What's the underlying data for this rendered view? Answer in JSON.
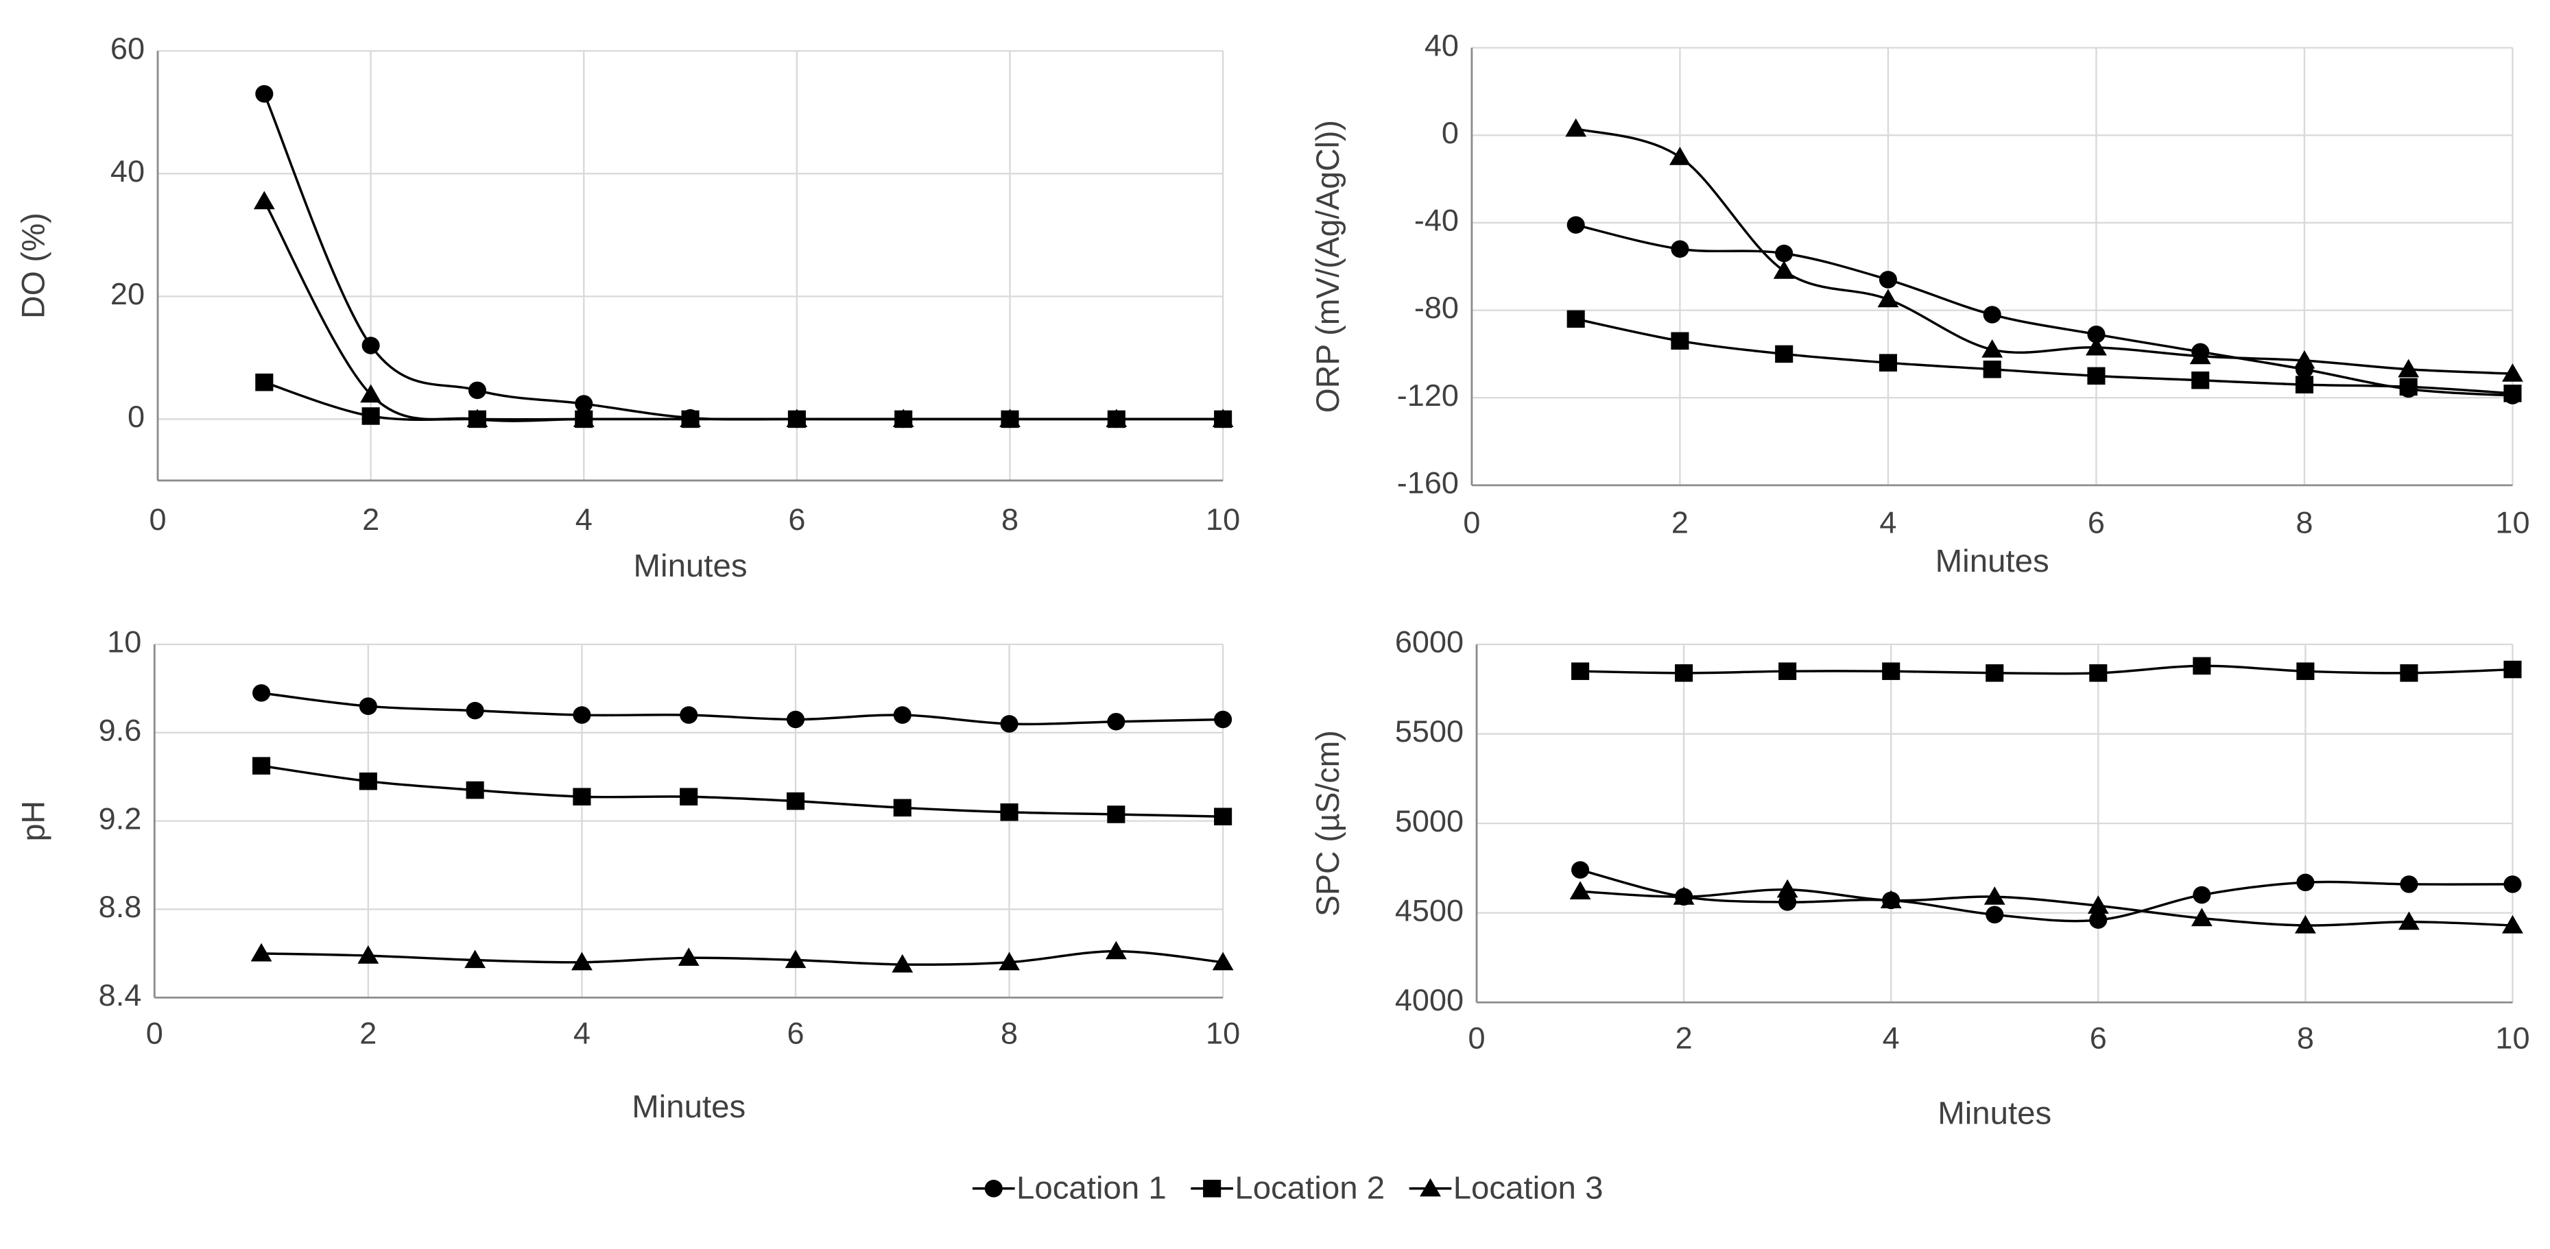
{
  "chart_data": [
    {
      "type": "line",
      "x_label": "Minutes",
      "y_label": "DO (%)",
      "x": [
        1,
        2,
        3,
        4,
        5,
        6,
        7,
        8,
        9,
        10
      ],
      "xlim": [
        0,
        10
      ],
      "xticks": [
        0,
        2,
        4,
        6,
        8,
        10
      ],
      "ylim": [
        -10,
        60
      ],
      "yticks": [
        0,
        20,
        40,
        60
      ],
      "grid": true,
      "series": [
        {
          "name": "Location 1",
          "color": "#000000",
          "marker": "circle",
          "values": [
            53,
            12,
            4.7,
            2.5,
            0.2,
            0,
            0,
            0,
            0,
            0
          ]
        },
        {
          "name": "Location 2",
          "color": "#000000",
          "marker": "square",
          "values": [
            6,
            0.5,
            0,
            0,
            0,
            0,
            0,
            0,
            0,
            0
          ]
        },
        {
          "name": "Location 3",
          "color": "#000000",
          "marker": "triangle",
          "values": [
            35.5,
            4,
            0,
            0,
            0,
            0,
            0,
            0,
            0,
            0
          ]
        }
      ]
    },
    {
      "type": "line",
      "x_label": "Minutes",
      "y_label": "ORP (mV/(Ag/AgCl))",
      "x": [
        1,
        2,
        3,
        4,
        5,
        6,
        7,
        8,
        9,
        10
      ],
      "xlim": [
        0,
        10
      ],
      "xticks": [
        0,
        2,
        4,
        6,
        8,
        10
      ],
      "ylim": [
        -160,
        40
      ],
      "yticks": [
        -160,
        -120,
        -80,
        -40,
        0,
        40
      ],
      "grid": true,
      "series": [
        {
          "name": "Location 1",
          "color": "#000000",
          "marker": "circle",
          "values": [
            -41,
            -52,
            -54,
            -66,
            -82,
            -91,
            -99,
            -107,
            -116,
            -119
          ]
        },
        {
          "name": "Location 2",
          "color": "#000000",
          "marker": "square",
          "values": [
            -84,
            -94,
            -100,
            -104,
            -107,
            -110,
            -112,
            -114,
            -115,
            -118
          ]
        },
        {
          "name": "Location 3",
          "color": "#000000",
          "marker": "triangle",
          "values": [
            3,
            -10,
            -62,
            -75,
            -98,
            -97,
            -101,
            -103,
            -107,
            -109
          ]
        }
      ]
    },
    {
      "type": "line",
      "x_label": "Minutes",
      "y_label": "pH",
      "x": [
        1,
        2,
        3,
        4,
        5,
        6,
        7,
        8,
        9,
        10
      ],
      "xlim": [
        0,
        10
      ],
      "xticks": [
        0,
        2,
        4,
        6,
        8,
        10
      ],
      "ylim": [
        8.4,
        10
      ],
      "yticks": [
        8.4,
        8.8,
        9.2,
        9.6,
        10
      ],
      "grid": true,
      "series": [
        {
          "name": "Location 1",
          "color": "#000000",
          "marker": "circle",
          "values": [
            9.78,
            9.72,
            9.7,
            9.68,
            9.68,
            9.66,
            9.68,
            9.64,
            9.65,
            9.66
          ]
        },
        {
          "name": "Location 2",
          "color": "#000000",
          "marker": "square",
          "values": [
            9.45,
            9.38,
            9.34,
            9.31,
            9.31,
            9.29,
            9.26,
            9.24,
            9.23,
            9.22
          ]
        },
        {
          "name": "Location 3",
          "color": "#000000",
          "marker": "triangle",
          "values": [
            8.6,
            8.59,
            8.57,
            8.56,
            8.58,
            8.57,
            8.55,
            8.56,
            8.61,
            8.56
          ]
        }
      ]
    },
    {
      "type": "line",
      "x_label": "Minutes",
      "y_label": "SPC (µS/cm)",
      "x": [
        1,
        2,
        3,
        4,
        5,
        6,
        7,
        8,
        9,
        10
      ],
      "xlim": [
        0,
        10
      ],
      "xticks": [
        0,
        2,
        4,
        6,
        8,
        10
      ],
      "ylim": [
        4000,
        6000
      ],
      "yticks": [
        4000,
        4500,
        5000,
        5500,
        6000
      ],
      "grid": true,
      "series": [
        {
          "name": "Location 1",
          "color": "#000000",
          "marker": "circle",
          "values": [
            4740,
            4590,
            4560,
            4570,
            4490,
            4460,
            4600,
            4670,
            4660,
            4660
          ]
        },
        {
          "name": "Location 2",
          "color": "#000000",
          "marker": "square",
          "values": [
            5850,
            5840,
            5850,
            5850,
            5840,
            5840,
            5880,
            5850,
            5840,
            5860
          ]
        },
        {
          "name": "Location 3",
          "color": "#000000",
          "marker": "triangle",
          "values": [
            4620,
            4590,
            4630,
            4570,
            4590,
            4540,
            4470,
            4430,
            4450,
            4430
          ]
        }
      ]
    }
  ]
}
